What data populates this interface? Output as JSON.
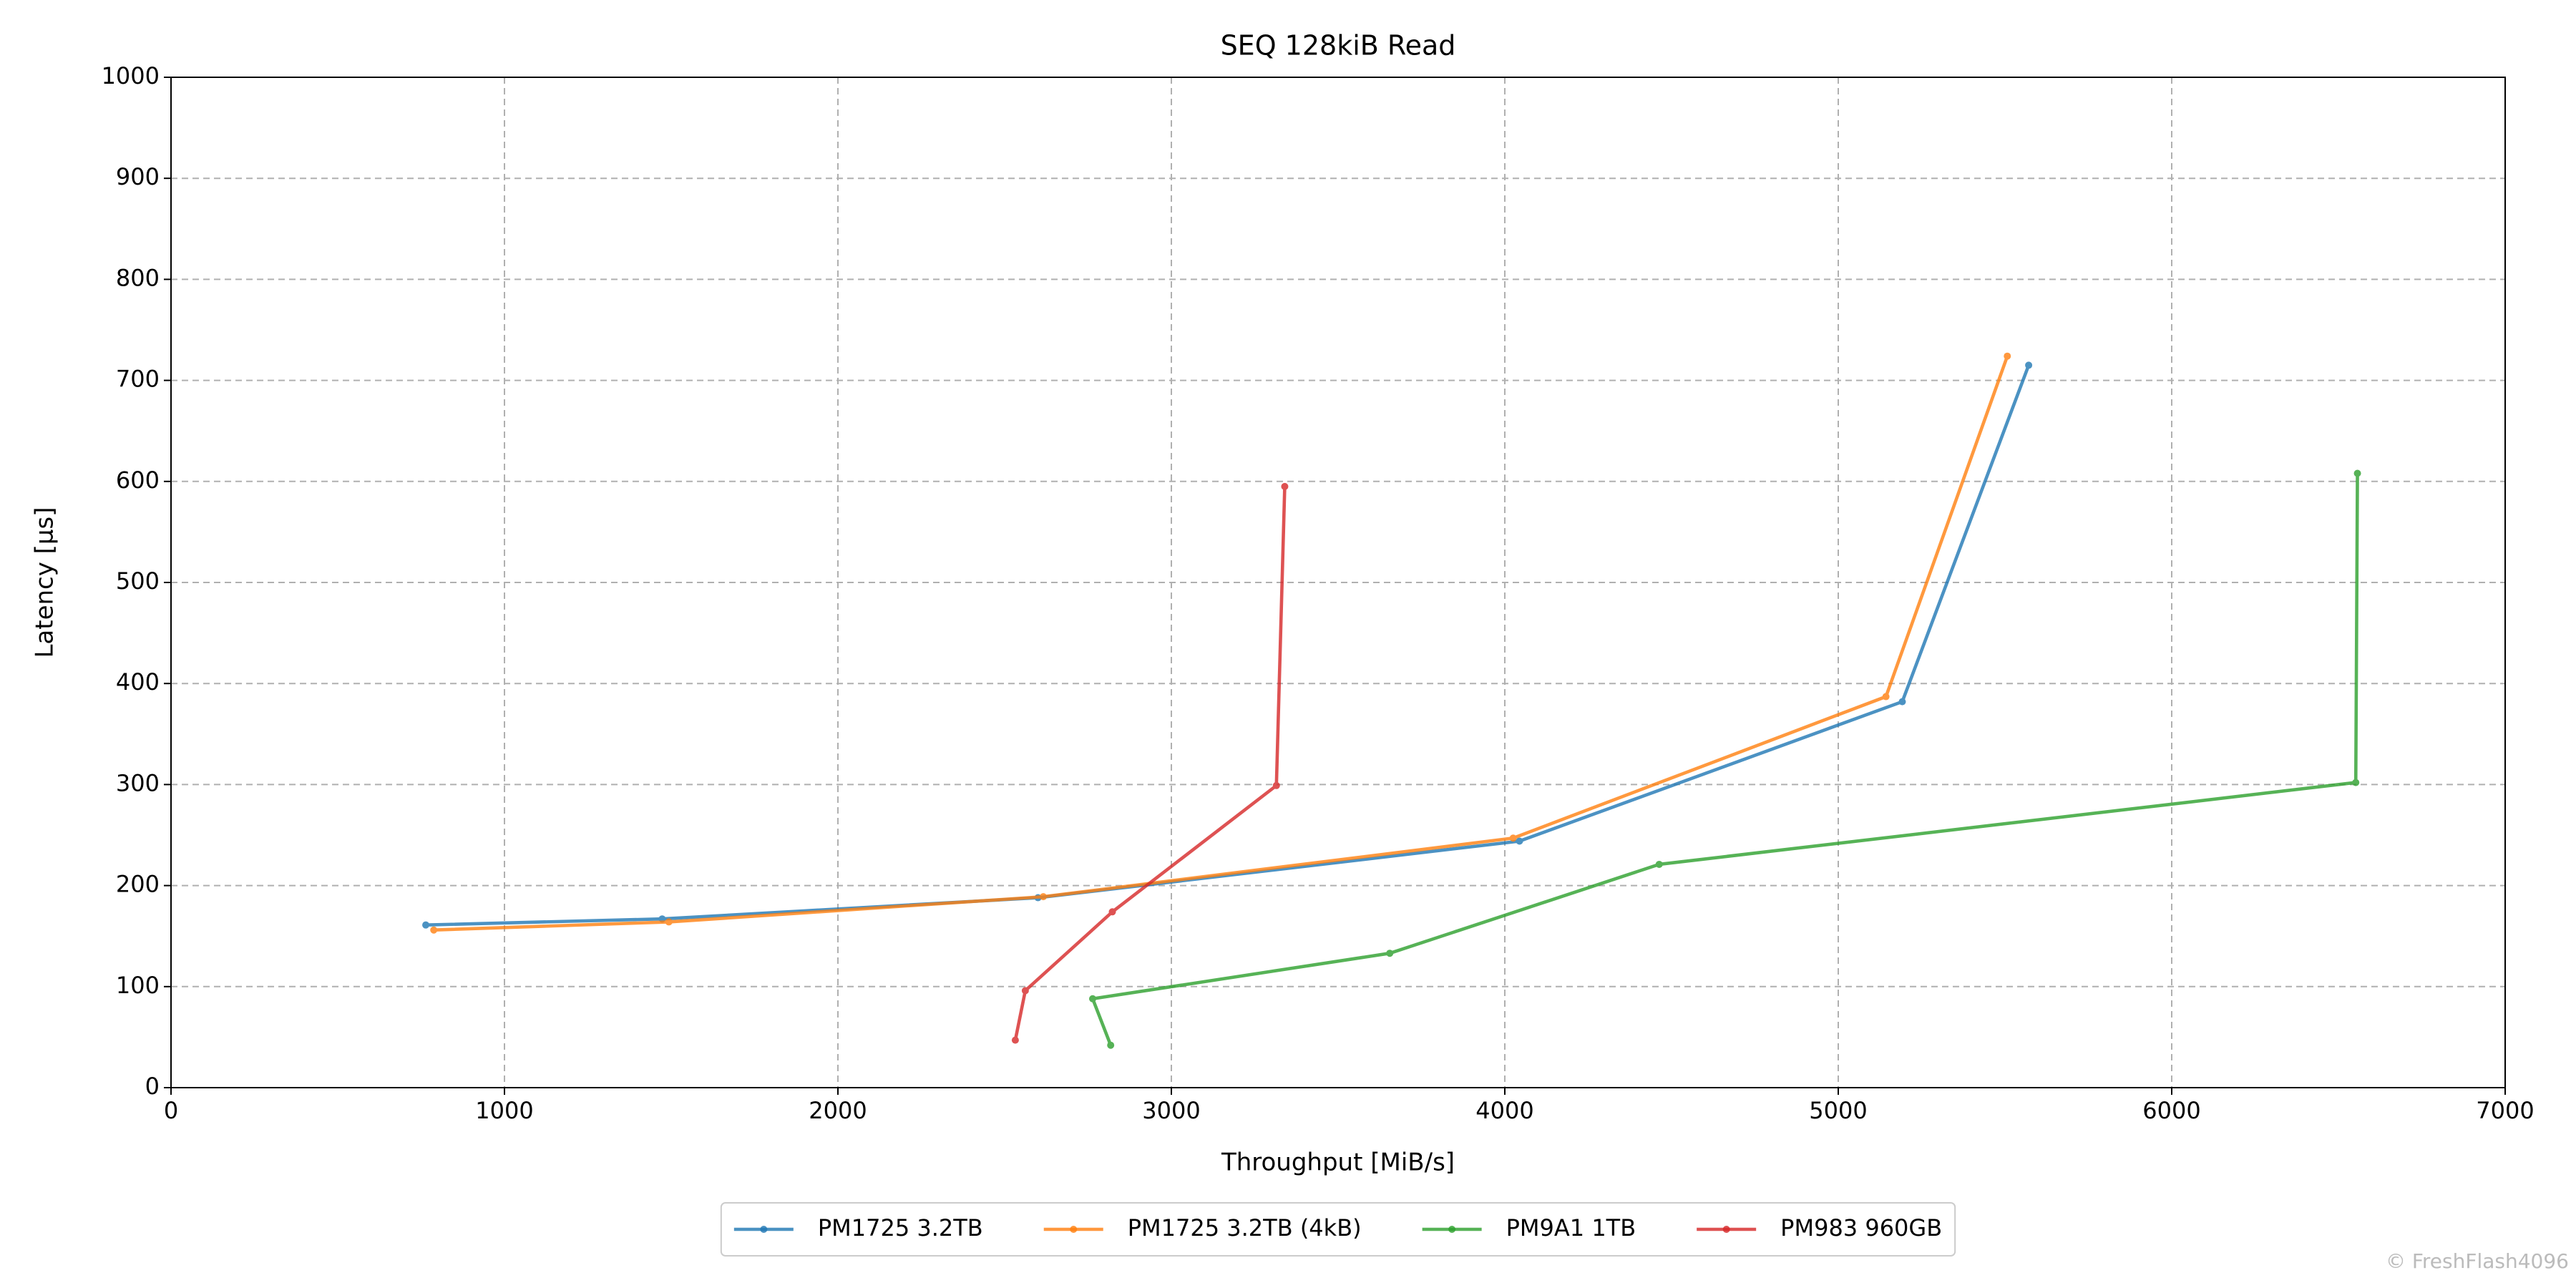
{
  "chart_data": {
    "type": "line",
    "title": "SEQ 128kiB Read",
    "x_label": "Throughput [MiB/s]",
    "y_label": "Latency [μs]",
    "watermark": "© FreshFlash4096",
    "xlim": [
      0,
      7000
    ],
    "xticks": [
      0,
      1000,
      2000,
      3000,
      4000,
      5000,
      6000,
      7000
    ],
    "ylim": [
      0,
      1000
    ],
    "yticks": [
      0,
      100,
      200,
      300,
      400,
      500,
      600,
      700,
      800,
      900,
      1000
    ],
    "grid": true,
    "legend": "bottom",
    "series": [
      {
        "name": "PM1725 3.2TB",
        "color": "#1f77b4",
        "x": [
          764,
          1473,
          2600,
          4044,
          5192,
          5571
        ],
        "values": [
          161,
          167,
          188,
          244,
          382,
          715
        ]
      },
      {
        "name": "PM1725 3.2TB (4kB)",
        "color": "#ff7f0e",
        "x": [
          788,
          1493,
          2616,
          4025,
          5143,
          5507
        ],
        "values": [
          156,
          164,
          189,
          247,
          387,
          724
        ]
      },
      {
        "name": "PM9A1 1TB",
        "color": "#2ca02c",
        "x": [
          2818,
          2764,
          3655,
          4463,
          6552,
          6557
        ],
        "values": [
          42,
          88,
          133,
          221,
          302,
          608
        ]
      },
      {
        "name": "PM983 960GB",
        "color": "#d62728",
        "x": [
          2532,
          2562,
          2823,
          3315,
          3340
        ],
        "values": [
          47,
          96,
          174,
          299,
          595
        ]
      }
    ]
  }
}
